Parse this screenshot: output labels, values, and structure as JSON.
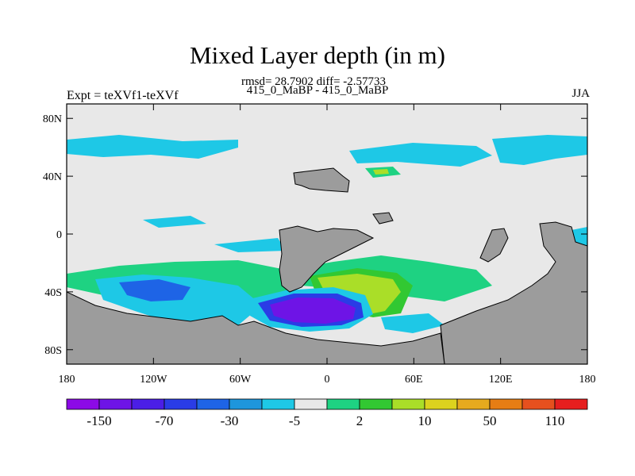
{
  "header": {
    "title": "Mixed Layer depth (in m)",
    "stats": "rmsd= 28.7902 diff= -2.57733",
    "runs": "415_0_MaBP - 415_0_MaBP",
    "experiment": "Expt = teXVf1-teXVf",
    "season": "JJA"
  },
  "map": {
    "lon_range": [
      -180,
      180
    ],
    "lat_range": [
      -90,
      90
    ],
    "y_ticks": [
      "80N",
      "40N",
      "0",
      "40S",
      "80S"
    ],
    "x_ticks": [
      "180",
      "120W",
      "60W",
      "0",
      "60E",
      "120E",
      "180"
    ],
    "colors": {
      "background": "#e8e8e8",
      "land": "#9c9c9c"
    }
  },
  "colorbar": {
    "colors": [
      "#8c0ae6",
      "#6e14e6",
      "#4b1ee6",
      "#2a3ce6",
      "#1e64e6",
      "#1e96dc",
      "#1ec8e6",
      "#e8e8e8",
      "#1ed282",
      "#32c832",
      "#aade28",
      "#dcd21e",
      "#e6aa1e",
      "#e67d14",
      "#e6501e",
      "#e61e1e"
    ],
    "labels": [
      "-150",
      "-70",
      "-30",
      "-5",
      "2",
      "10",
      "50",
      "110"
    ]
  }
}
